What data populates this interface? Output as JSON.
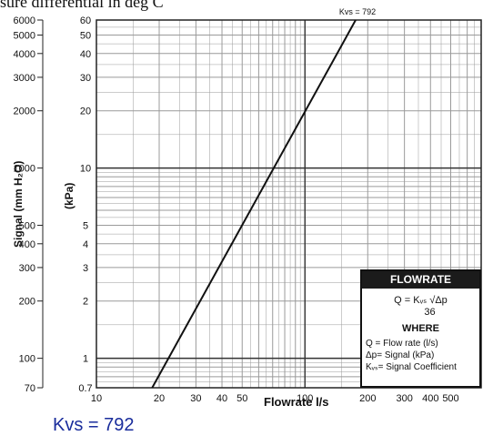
{
  "page": {
    "header_fragment": "sure differential in deg C",
    "footer_kvs": "Kvs = 792"
  },
  "chart_data": {
    "type": "line",
    "scale": "log-log",
    "grid": true,
    "xlabel": "Flowrate l/s",
    "ylabel_left": "Signal (mm H₂O)",
    "ylabel_right": "(kPa)",
    "xlim": [
      10,
      700
    ],
    "ylim": [
      70,
      6000
    ],
    "xticks": [
      {
        "v": 10,
        "label": "10"
      },
      {
        "v": 20,
        "label": "20"
      },
      {
        "v": 30,
        "label": "30"
      },
      {
        "v": 40,
        "label": "40"
      },
      {
        "v": 50,
        "label": "50"
      },
      {
        "v": 100,
        "label": "100"
      },
      {
        "v": 200,
        "label": "200"
      },
      {
        "v": 300,
        "label": "300"
      },
      {
        "v": 400,
        "label": "400"
      },
      {
        "v": 500,
        "label": "500"
      }
    ],
    "yticks_mm": [
      {
        "v": 70,
        "label": "70"
      },
      {
        "v": 100,
        "label": "100"
      },
      {
        "v": 200,
        "label": "200"
      },
      {
        "v": 300,
        "label": "300"
      },
      {
        "v": 400,
        "label": "400"
      },
      {
        "v": 500,
        "label": "500"
      },
      {
        "v": 1000,
        "label": "1000"
      },
      {
        "v": 2000,
        "label": "2000"
      },
      {
        "v": 3000,
        "label": "3000"
      },
      {
        "v": 4000,
        "label": "4000"
      },
      {
        "v": 5000,
        "label": "5000"
      },
      {
        "v": 6000,
        "label": "6000"
      }
    ],
    "yticks_kpa": [
      {
        "v": 0.7,
        "label": "0.7"
      },
      {
        "v": 1,
        "label": "1"
      },
      {
        "v": 2,
        "label": "2"
      },
      {
        "v": 3,
        "label": "3"
      },
      {
        "v": 4,
        "label": "4"
      },
      {
        "v": 5,
        "label": "5"
      },
      {
        "v": 10,
        "label": "10"
      },
      {
        "v": 20,
        "label": "20"
      },
      {
        "v": 30,
        "label": "30"
      },
      {
        "v": 40,
        "label": "40"
      },
      {
        "v": 50,
        "label": "50"
      },
      {
        "v": 60,
        "label": "60"
      }
    ],
    "series": [
      {
        "name": "Kvs = 792",
        "x": [
          18.5,
          175
        ],
        "y": [
          70,
          6000
        ]
      }
    ],
    "annotations": [
      "Kvs = 792"
    ],
    "line_color": "#111111",
    "grid_color": "#9a9a9a"
  },
  "legend": {
    "title": "FLOWRATE",
    "formula_num": "Q = Kᵥₛ  √Δp",
    "formula_den": "36",
    "where": "WHERE",
    "defs": [
      "Q  = Flow rate (l/s)",
      "Δp= Signal (kPa)",
      "Kᵥₛ= Signal Coefficient"
    ]
  }
}
